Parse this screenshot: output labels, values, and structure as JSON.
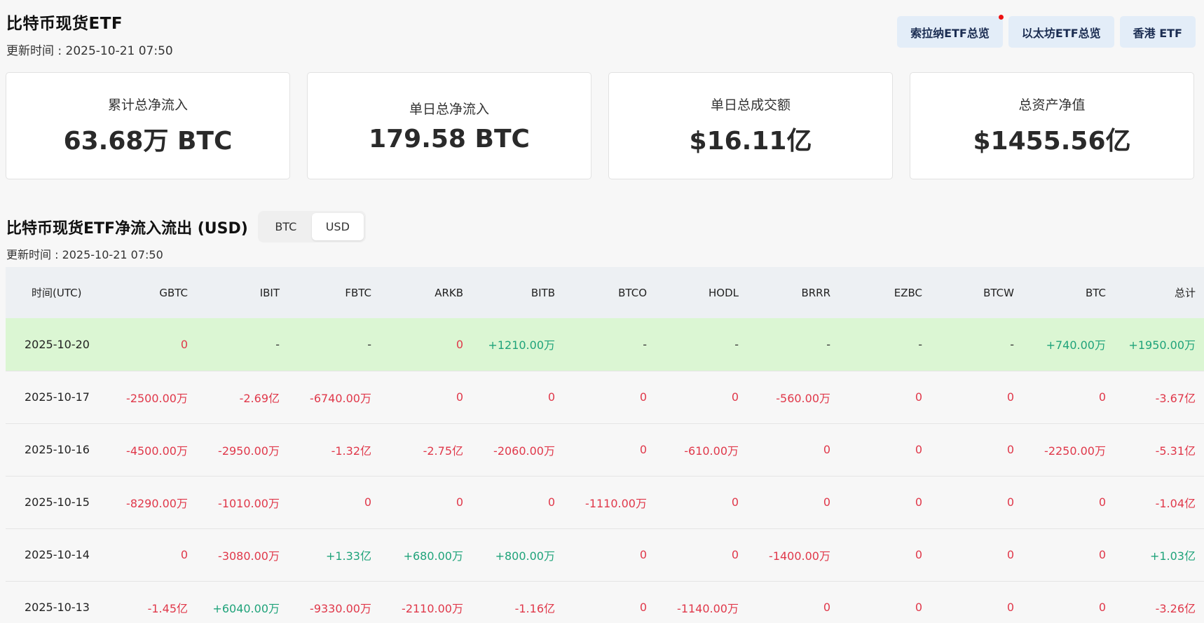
{
  "header": {
    "title": "比特币现货ETF",
    "update_time": "更新时间 : 2025-10-21 07:50"
  },
  "top_buttons": [
    {
      "label": "索拉纳ETF总览",
      "has_notification": true
    },
    {
      "label": "以太坊ETF总览",
      "has_notification": false
    },
    {
      "label": "香港 ETF",
      "has_notification": false
    }
  ],
  "stats": [
    {
      "label": "累计总净流入",
      "value": "63.68万 BTC"
    },
    {
      "label": "单日总净流入",
      "value": "179.58 BTC"
    },
    {
      "label": "单日总成交额",
      "value": "$16.11亿"
    },
    {
      "label": "总资产净值",
      "value": "$1455.56亿"
    }
  ],
  "flows": {
    "title": "比特币现货ETF净流入流出 (USD)",
    "toggle": {
      "options": [
        "BTC",
        "USD"
      ],
      "selected": "USD"
    },
    "update_time": "更新时间 : 2025-10-21 07:50",
    "columns": [
      "时间(UTC)",
      "GBTC",
      "IBIT",
      "FBTC",
      "ARKB",
      "BITB",
      "BTCO",
      "HODL",
      "BRRR",
      "EZBC",
      "BTCW",
      "BTC",
      "总计"
    ],
    "rows": [
      [
        "2025-10-20",
        "0",
        "-",
        "-",
        "0",
        "+1210.00万",
        "-",
        "-",
        "-",
        "-",
        "-",
        "+740.00万",
        "+1950.00万"
      ],
      [
        "2025-10-17",
        "-2500.00万",
        "-2.69亿",
        "-6740.00万",
        "0",
        "0",
        "0",
        "0",
        "-560.00万",
        "0",
        "0",
        "0",
        "-3.67亿"
      ],
      [
        "2025-10-16",
        "-4500.00万",
        "-2950.00万",
        "-1.32亿",
        "-2.75亿",
        "-2060.00万",
        "0",
        "-610.00万",
        "0",
        "0",
        "0",
        "-2250.00万",
        "-5.31亿"
      ],
      [
        "2025-10-15",
        "-8290.00万",
        "-1010.00万",
        "0",
        "0",
        "0",
        "-1110.00万",
        "0",
        "0",
        "0",
        "0",
        "0",
        "-1.04亿"
      ],
      [
        "2025-10-14",
        "0",
        "-3080.00万",
        "+1.33亿",
        "+680.00万",
        "+800.00万",
        "0",
        "0",
        "-1400.00万",
        "0",
        "0",
        "0",
        "+1.03亿"
      ],
      [
        "2025-10-13",
        "-1.45亿",
        "+6040.00万",
        "-9330.00万",
        "-2110.00万",
        "-1.16亿",
        "0",
        "-1140.00万",
        "0",
        "0",
        "0",
        "0",
        "-3.26亿"
      ]
    ],
    "highlighted_row": 0
  },
  "colors": {
    "negative": "#e0384a",
    "positive": "#1fa37a",
    "highlight_row": "#dbf6d3",
    "button_bg": "#e3edf8"
  }
}
